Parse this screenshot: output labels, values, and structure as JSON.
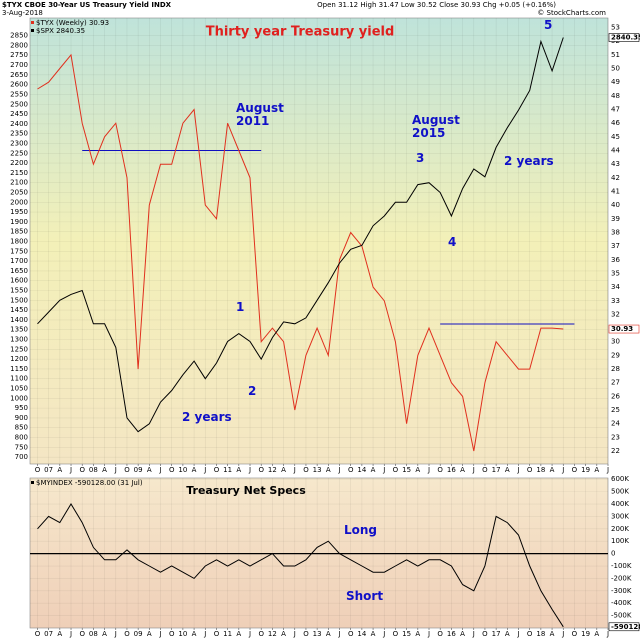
{
  "header": {
    "symbol": "$TYX CBOE 30-Year US Treasury Yield INDX",
    "date": "3-Aug-2018",
    "quote": "Open 31.12 High 31.47 Low 30.52 Close 30.93 Chg +0.05 (+0.16%)",
    "credit": "© StockCharts.com"
  },
  "chart_data": [
    {
      "type": "line",
      "title": "Thirty year Treasury yield",
      "yaxis_side": "left",
      "grid": true,
      "x": [
        "2006-10",
        "2007-01",
        "2007-04",
        "2007-07",
        "2007-10",
        "2008-01",
        "2008-04",
        "2008-07",
        "2008-10",
        "2009-01",
        "2009-04",
        "2009-07",
        "2009-10",
        "2010-01",
        "2010-04",
        "2010-07",
        "2010-10",
        "2011-01",
        "2011-04",
        "2011-07",
        "2011-10",
        "2012-01",
        "2012-04",
        "2012-07",
        "2012-10",
        "2013-01",
        "2013-04",
        "2013-07",
        "2013-10",
        "2014-01",
        "2014-04",
        "2014-07",
        "2014-10",
        "2015-01",
        "2015-04",
        "2015-07",
        "2015-10",
        "2016-01",
        "2016-04",
        "2016-07",
        "2016-10",
        "2017-01",
        "2017-04",
        "2017-07",
        "2017-10",
        "2018-01",
        "2018-04",
        "2018-07"
      ],
      "xlim": [
        "2006-08",
        "2019-07"
      ],
      "xticks": [
        {
          "value": "2006-10",
          "label": "O"
        },
        {
          "value": "2007-01",
          "label": "07"
        },
        {
          "value": "2007-04",
          "label": "A"
        },
        {
          "value": "2007-07",
          "label": "J"
        },
        {
          "value": "2007-10",
          "label": "O"
        },
        {
          "value": "2008-01",
          "label": "08"
        },
        {
          "value": "2008-04",
          "label": "A"
        },
        {
          "value": "2008-07",
          "label": "J"
        },
        {
          "value": "2008-10",
          "label": "O"
        },
        {
          "value": "2009-01",
          "label": "09"
        },
        {
          "value": "2009-04",
          "label": "A"
        },
        {
          "value": "2009-07",
          "label": "J"
        },
        {
          "value": "2009-10",
          "label": "O"
        },
        {
          "value": "2010-01",
          "label": "10"
        },
        {
          "value": "2010-04",
          "label": "A"
        },
        {
          "value": "2010-07",
          "label": "J"
        },
        {
          "value": "2010-10",
          "label": "O"
        },
        {
          "value": "2011-01",
          "label": "11"
        },
        {
          "value": "2011-04",
          "label": "A"
        },
        {
          "value": "2011-07",
          "label": "J"
        },
        {
          "value": "2011-10",
          "label": "O"
        },
        {
          "value": "2012-01",
          "label": "12"
        },
        {
          "value": "2012-04",
          "label": "A"
        },
        {
          "value": "2012-07",
          "label": "J"
        },
        {
          "value": "2012-10",
          "label": "O"
        },
        {
          "value": "2013-01",
          "label": "13"
        },
        {
          "value": "2013-04",
          "label": "A"
        },
        {
          "value": "2013-07",
          "label": "J"
        },
        {
          "value": "2013-10",
          "label": "O"
        },
        {
          "value": "2014-01",
          "label": "14"
        },
        {
          "value": "2014-04",
          "label": "A"
        },
        {
          "value": "2014-07",
          "label": "J"
        },
        {
          "value": "2014-10",
          "label": "O"
        },
        {
          "value": "2015-01",
          "label": "15"
        },
        {
          "value": "2015-04",
          "label": "A"
        },
        {
          "value": "2015-07",
          "label": "J"
        },
        {
          "value": "2015-10",
          "label": "O"
        },
        {
          "value": "2016-01",
          "label": "16"
        },
        {
          "value": "2016-04",
          "label": "A"
        },
        {
          "value": "2016-07",
          "label": "J"
        },
        {
          "value": "2016-10",
          "label": "O"
        },
        {
          "value": "2017-01",
          "label": "17"
        },
        {
          "value": "2017-04",
          "label": "A"
        },
        {
          "value": "2017-07",
          "label": "J"
        },
        {
          "value": "2017-10",
          "label": "O"
        },
        {
          "value": "2018-01",
          "label": "18"
        },
        {
          "value": "2018-04",
          "label": "A"
        },
        {
          "value": "2018-07",
          "label": "J"
        },
        {
          "value": "2018-10",
          "label": "O"
        },
        {
          "value": "2019-01",
          "label": "19"
        },
        {
          "value": "2019-04",
          "label": "A"
        },
        {
          "value": "2019-07",
          "label": "J"
        }
      ],
      "ylim": [
        665,
        2940
      ],
      "yticks": [
        700,
        750,
        800,
        850,
        900,
        950,
        1000,
        1050,
        1100,
        1150,
        1200,
        1250,
        1300,
        1350,
        1400,
        1450,
        1500,
        1550,
        1600,
        1650,
        1700,
        1750,
        1800,
        1850,
        1900,
        1950,
        2000,
        2050,
        2100,
        2150,
        2200,
        2250,
        2300,
        2350,
        2400,
        2450,
        2500,
        2550,
        2600,
        2650,
        2700,
        2750,
        2800,
        2850
      ],
      "y2lim": [
        21.05,
        53.7
      ],
      "y2ticks": [
        22,
        23,
        24,
        25,
        26,
        27,
        28,
        29,
        30,
        31,
        32,
        33,
        34,
        35,
        36,
        37,
        38,
        39,
        40,
        41,
        42,
        43,
        44,
        45,
        46,
        47,
        48,
        49,
        50,
        51,
        52,
        53
      ],
      "series": [
        {
          "name": "$TYX (Weekly) 30.93",
          "color": "#e0301e",
          "axis": "y2",
          "values": [
            48.5,
            49,
            50,
            51,
            46,
            43,
            45,
            46,
            42,
            28,
            40,
            43,
            43,
            46,
            47,
            40,
            39,
            46,
            44,
            42,
            30,
            31,
            30,
            25,
            29,
            31,
            29,
            36,
            38,
            37,
            34,
            33,
            30,
            24,
            29,
            31,
            29,
            27,
            26,
            22,
            27,
            30,
            29,
            28,
            28,
            31,
            31,
            30.93
          ]
        },
        {
          "name": "$SPX 2840.35",
          "color": "#000000",
          "values": [
            1380,
            1440,
            1500,
            1530,
            1550,
            1380,
            1380,
            1260,
            900,
            830,
            870,
            980,
            1040,
            1120,
            1190,
            1100,
            1180,
            1290,
            1330,
            1290,
            1200,
            1310,
            1390,
            1380,
            1410,
            1500,
            1590,
            1690,
            1760,
            1780,
            1880,
            1930,
            2000,
            2000,
            2090,
            2100,
            2050,
            1930,
            2070,
            2170,
            2130,
            2280,
            2380,
            2470,
            2570,
            2820,
            2670,
            2840.35
          ]
        }
      ],
      "reference_lines": [
        {
          "axis": "y2",
          "value": 44,
          "color": "#1010c0",
          "x": [
            "2007-10",
            "2011-10"
          ]
        },
        {
          "axis": "y2",
          "value": 31.3,
          "color": "#1010c0",
          "x": [
            "2015-10",
            "2018-10"
          ]
        }
      ],
      "annotations": [
        "August 2011",
        "August 2015",
        "1",
        "2",
        "3",
        "4",
        "5",
        "2 years",
        "2 years"
      ]
    },
    {
      "type": "line",
      "title": "Treasury Net Specs",
      "yaxis_side": "right",
      "grid": true,
      "zero_line": true,
      "x": [
        "2006-10",
        "2007-01",
        "2007-04",
        "2007-07",
        "2007-10",
        "2008-01",
        "2008-04",
        "2008-07",
        "2008-10",
        "2009-01",
        "2009-04",
        "2009-07",
        "2009-10",
        "2010-01",
        "2010-04",
        "2010-07",
        "2010-10",
        "2011-01",
        "2011-04",
        "2011-07",
        "2011-10",
        "2012-01",
        "2012-04",
        "2012-07",
        "2012-10",
        "2013-01",
        "2013-04",
        "2013-07",
        "2013-10",
        "2014-01",
        "2014-04",
        "2014-07",
        "2014-10",
        "2015-01",
        "2015-04",
        "2015-07",
        "2015-10",
        "2016-01",
        "2016-04",
        "2016-07",
        "2016-10",
        "2017-01",
        "2017-04",
        "2017-07",
        "2017-10",
        "2018-01",
        "2018-04",
        "2018-07"
      ],
      "xlim": [
        "2006-08",
        "2019-07"
      ],
      "xticks": [
        {
          "value": "2006-10",
          "label": "O"
        },
        {
          "value": "2007-01",
          "label": "07"
        },
        {
          "value": "2007-04",
          "label": "A"
        },
        {
          "value": "2007-07",
          "label": "J"
        },
        {
          "value": "2007-10",
          "label": "O"
        },
        {
          "value": "2008-01",
          "label": "08"
        },
        {
          "value": "2008-04",
          "label": "A"
        },
        {
          "value": "2008-07",
          "label": "J"
        },
        {
          "value": "2008-10",
          "label": "O"
        },
        {
          "value": "2009-01",
          "label": "09"
        },
        {
          "value": "2009-04",
          "label": "A"
        },
        {
          "value": "2009-07",
          "label": "J"
        },
        {
          "value": "2009-10",
          "label": "O"
        },
        {
          "value": "2010-01",
          "label": "10"
        },
        {
          "value": "2010-04",
          "label": "A"
        },
        {
          "value": "2010-07",
          "label": "J"
        },
        {
          "value": "2010-10",
          "label": "O"
        },
        {
          "value": "2011-01",
          "label": "11"
        },
        {
          "value": "2011-04",
          "label": "A"
        },
        {
          "value": "2011-07",
          "label": "J"
        },
        {
          "value": "2011-10",
          "label": "O"
        },
        {
          "value": "2012-01",
          "label": "12"
        },
        {
          "value": "2012-04",
          "label": "A"
        },
        {
          "value": "2012-07",
          "label": "J"
        },
        {
          "value": "2012-10",
          "label": "O"
        },
        {
          "value": "2013-01",
          "label": "13"
        },
        {
          "value": "2013-04",
          "label": "A"
        },
        {
          "value": "2013-07",
          "label": "J"
        },
        {
          "value": "2013-10",
          "label": "O"
        },
        {
          "value": "2014-01",
          "label": "14"
        },
        {
          "value": "2014-04",
          "label": "A"
        },
        {
          "value": "2014-07",
          "label": "J"
        },
        {
          "value": "2014-10",
          "label": "O"
        },
        {
          "value": "2015-01",
          "label": "15"
        },
        {
          "value": "2015-04",
          "label": "A"
        },
        {
          "value": "2015-07",
          "label": "J"
        },
        {
          "value": "2015-10",
          "label": "O"
        },
        {
          "value": "2016-01",
          "label": "16"
        },
        {
          "value": "2016-04",
          "label": "A"
        },
        {
          "value": "2016-07",
          "label": "J"
        },
        {
          "value": "2016-10",
          "label": "O"
        },
        {
          "value": "2017-01",
          "label": "17"
        },
        {
          "value": "2017-04",
          "label": "A"
        },
        {
          "value": "2017-07",
          "label": "J"
        },
        {
          "value": "2017-10",
          "label": "O"
        },
        {
          "value": "2018-01",
          "label": "18"
        },
        {
          "value": "2018-04",
          "label": "A"
        },
        {
          "value": "2018-07",
          "label": "J"
        },
        {
          "value": "2018-10",
          "label": "O"
        },
        {
          "value": "2019-01",
          "label": "19"
        },
        {
          "value": "2019-04",
          "label": "A"
        },
        {
          "value": "2019-07",
          "label": "J"
        }
      ],
      "ylim": [
        -600000,
        610000
      ],
      "yticks": [
        {
          "value": 600000,
          "label": "600K"
        },
        {
          "value": 500000,
          "label": "500K"
        },
        {
          "value": 400000,
          "label": "400K"
        },
        {
          "value": 300000,
          "label": "300K"
        },
        {
          "value": 200000,
          "label": "200K"
        },
        {
          "value": 100000,
          "label": "100K"
        },
        0,
        {
          "value": -100000,
          "label": "-100K"
        },
        {
          "value": -200000,
          "label": "-200K"
        },
        {
          "value": -300000,
          "label": "-300K"
        },
        {
          "value": -400000,
          "label": "-400K"
        },
        {
          "value": -500000,
          "label": "-500K"
        }
      ],
      "series": [
        {
          "name": "$MYINDEX -590128.00 (31 Jul)",
          "color": "#000000",
          "last_value_label": "-590128.0",
          "values": [
            200000,
            300000,
            250000,
            400000,
            250000,
            50000,
            -50000,
            -50000,
            30000,
            -50000,
            -100000,
            -150000,
            -100000,
            -150000,
            -200000,
            -100000,
            -50000,
            -100000,
            -50000,
            -100000,
            -50000,
            0,
            -100000,
            -100000,
            -50000,
            50000,
            100000,
            0,
            -50000,
            -100000,
            -150000,
            -150000,
            -100000,
            -50000,
            -100000,
            -50000,
            -50000,
            -100000,
            -250000,
            -300000,
            -100000,
            300000,
            250000,
            150000,
            -100000,
            -300000,
            -450000,
            -590128
          ]
        }
      ],
      "annotations": [
        "Long",
        "Short"
      ]
    }
  ]
}
